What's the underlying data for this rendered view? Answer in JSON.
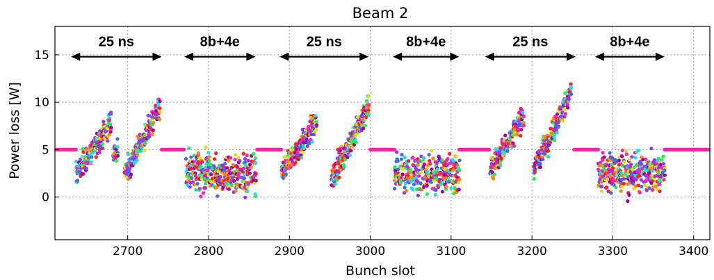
{
  "chart_data": {
    "type": "scatter",
    "title": "Beam 2",
    "xlabel": "Bunch slot",
    "ylabel": "Power loss [W]",
    "xlim": [
      2610,
      3420
    ],
    "ylim": [
      -4.5,
      18
    ],
    "xticks": [
      2700,
      2800,
      2900,
      3000,
      3100,
      3200,
      3300,
      3400
    ],
    "yticks": [
      0,
      5,
      10,
      15
    ],
    "grid": true,
    "legend": "none",
    "baseline": {
      "value": 5,
      "color": "#ff22aa",
      "ranges": [
        [
          2612,
          2636
        ],
        [
          2742,
          2770
        ],
        [
          2860,
          2890
        ],
        [
          3000,
          3030
        ],
        [
          3110,
          3148
        ],
        [
          3252,
          3282
        ],
        [
          3364,
          3418
        ]
      ]
    },
    "colors": [
      "#ff22aa",
      "#ff2020",
      "#3b6bff",
      "#22ddee",
      "#22ee55",
      "#dddd22",
      "#ff8800",
      "#9933ff",
      "#a000a0"
    ],
    "ramp_trains": [
      {
        "x_start": 2636,
        "x_end": 2680,
        "y_start": 2.5,
        "y_end": 8.0
      },
      {
        "x_start": 2682,
        "x_end": 2688,
        "y_start": 4.5,
        "y_end": 5.0
      },
      {
        "x_start": 2696,
        "x_end": 2740,
        "y_start": 2.5,
        "y_end": 9.5
      },
      {
        "x_start": 2890,
        "x_end": 2934,
        "y_start": 2.5,
        "y_end": 8.0
      },
      {
        "x_start": 2952,
        "x_end": 2998,
        "y_start": 2.0,
        "y_end": 9.5
      },
      {
        "x_start": 3148,
        "x_end": 3190,
        "y_start": 3.0,
        "y_end": 8.5
      },
      {
        "x_start": 3202,
        "x_end": 3248,
        "y_start": 3.0,
        "y_end": 11.0
      }
    ],
    "batch_trains": [
      {
        "x_start": 2772,
        "x_end": 2858,
        "center": 2.5
      },
      {
        "x_start": 3030,
        "x_end": 3110,
        "center": 2.5
      },
      {
        "x_start": 3282,
        "x_end": 3364,
        "center": 2.5
      }
    ],
    "annotations": [
      {
        "text": "25 ns",
        "x_from": 2630,
        "x_to": 2742,
        "y": 14.8
      },
      {
        "text": "8b+4e",
        "x_from": 2770,
        "x_to": 2858,
        "y": 14.8
      },
      {
        "text": "25 ns",
        "x_from": 2888,
        "x_to": 2998,
        "y": 14.8
      },
      {
        "text": "8b+4e",
        "x_from": 3028,
        "x_to": 3110,
        "y": 14.8
      },
      {
        "text": "25 ns",
        "x_from": 3142,
        "x_to": 3254,
        "y": 14.8
      },
      {
        "text": "8b+4e",
        "x_from": 3278,
        "x_to": 3364,
        "y": 14.8
      }
    ]
  }
}
